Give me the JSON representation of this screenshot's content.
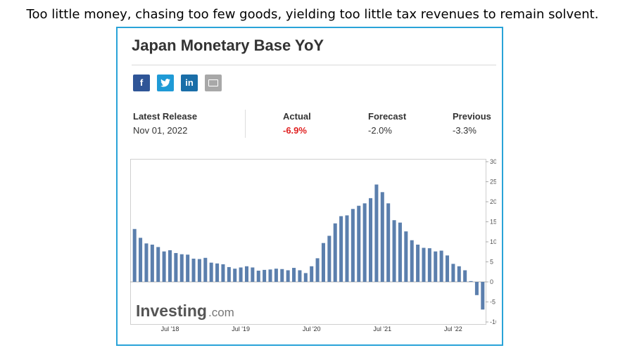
{
  "caption": "Too little money, chasing too few goods, yielding too little tax revenues to remain solvent.",
  "card": {
    "title": "Japan Monetary Base YoY",
    "share": {
      "facebook": "f",
      "twitter": "t",
      "linkedin": "in"
    },
    "stats": {
      "latest_release_label": "Latest Release",
      "latest_release_value": "Nov 01, 2022",
      "actual_label": "Actual",
      "actual_value": "-6.9%",
      "forecast_label": "Forecast",
      "forecast_value": "-2.0%",
      "previous_label": "Previous",
      "previous_value": "-3.3%"
    },
    "watermark": {
      "brand": "Investing",
      "suffix": ".com"
    }
  },
  "colors": {
    "bar": "#5b7fad",
    "accent_border": "#29a3d8",
    "actual": "#e02020"
  },
  "chart_data": {
    "type": "bar",
    "title": "Japan Monetary Base YoY",
    "ylabel": "",
    "xlabel": "",
    "ylim": [
      -10,
      30
    ],
    "y_ticks": [
      30,
      25,
      20,
      15,
      10,
      5,
      0,
      -5,
      -10
    ],
    "x_ticks": [
      {
        "label": "Jul '18",
        "index": 6
      },
      {
        "label": "Jul '19",
        "index": 18
      },
      {
        "label": "Jul '20",
        "index": 30
      },
      {
        "label": "Jul '21",
        "index": 42
      },
      {
        "label": "Jul '22",
        "index": 54
      }
    ],
    "grid": false,
    "values": [
      13.2,
      11.0,
      9.6,
      9.3,
      8.7,
      7.6,
      7.9,
      7.2,
      6.9,
      6.8,
      5.8,
      5.7,
      6.0,
      4.8,
      4.6,
      4.4,
      3.7,
      3.3,
      3.6,
      3.9,
      3.6,
      2.8,
      3.0,
      3.1,
      3.3,
      3.2,
      2.9,
      3.5,
      2.9,
      2.2,
      3.9,
      5.9,
      9.7,
      11.5,
      14.6,
      16.4,
      16.6,
      18.2,
      19.0,
      19.6,
      20.9,
      24.3,
      22.4,
      19.6,
      15.4,
      14.8,
      12.6,
      10.4,
      9.3,
      8.5,
      8.4,
      7.6,
      7.8,
      6.6,
      4.5,
      3.9,
      2.9,
      0.2,
      -3.3,
      -6.9
    ]
  }
}
